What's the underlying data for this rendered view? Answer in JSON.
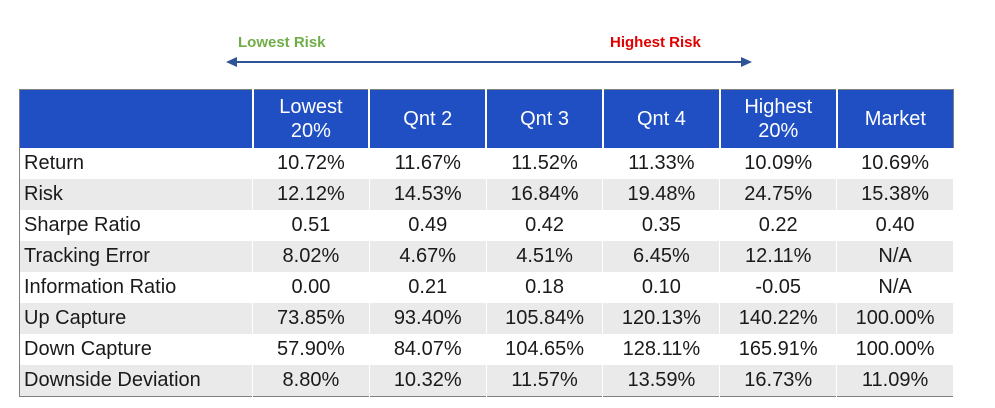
{
  "risk_scale": {
    "low_label": "Lowest Risk",
    "high_label": "Highest Risk",
    "low_color": "#70ad47",
    "high_color": "#e00000",
    "arrow_color": "#2f5597"
  },
  "colors": {
    "header_bg": "#1f4fc2",
    "alt_row_bg": "#eaeaea"
  },
  "chart_data": {
    "type": "table",
    "columns": [
      "",
      "Lowest\n20%",
      "Qnt 2",
      "Qnt 3",
      "Qnt 4",
      "Highest\n20%",
      "Market"
    ],
    "rows": [
      {
        "label": "Return",
        "values": [
          "10.72%",
          "11.67%",
          "11.52%",
          "11.33%",
          "10.09%",
          "10.69%"
        ]
      },
      {
        "label": "Risk",
        "values": [
          "12.12%",
          "14.53%",
          "16.84%",
          "19.48%",
          "24.75%",
          "15.38%"
        ]
      },
      {
        "label": "Sharpe Ratio",
        "values": [
          "0.51",
          "0.49",
          "0.42",
          "0.35",
          "0.22",
          "0.40"
        ]
      },
      {
        "label": "Tracking Error",
        "values": [
          "8.02%",
          "4.67%",
          "4.51%",
          "6.45%",
          "12.11%",
          "N/A"
        ]
      },
      {
        "label": "Information Ratio",
        "values": [
          "0.00",
          "0.21",
          "0.18",
          "0.10",
          "-0.05",
          "N/A"
        ]
      },
      {
        "label": "Up Capture",
        "values": [
          "73.85%",
          "93.40%",
          "105.84%",
          "120.13%",
          "140.22%",
          "100.00%"
        ]
      },
      {
        "label": "Down Capture",
        "values": [
          "57.90%",
          "84.07%",
          "104.65%",
          "128.11%",
          "165.91%",
          "100.00%"
        ]
      },
      {
        "label": "Downside Deviation",
        "values": [
          "8.80%",
          "10.32%",
          "11.57%",
          "13.59%",
          "16.73%",
          "11.09%"
        ]
      }
    ]
  }
}
